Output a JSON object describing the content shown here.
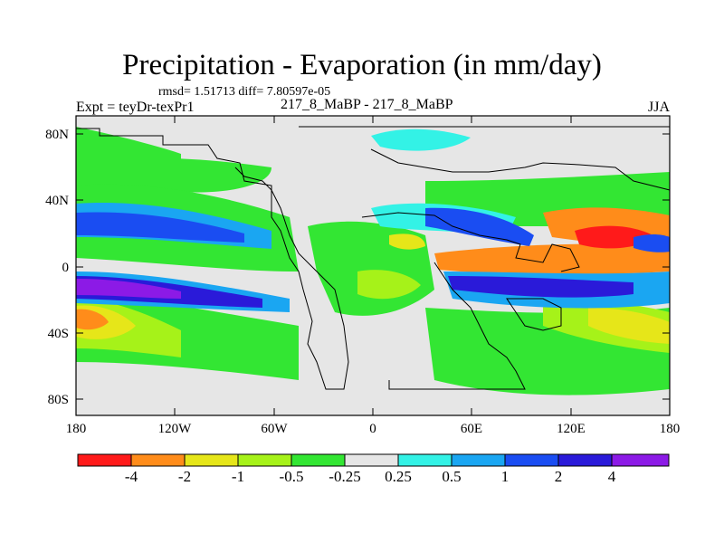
{
  "header": {
    "title": "Precipitation - Evaporation (in mm/day)",
    "stats": "rmsd= 1.51713 diff= 7.80597e-05",
    "experiment": "Expt = teyDr-texPr1",
    "comparison": "217_8_MaBP - 217_8_MaBP",
    "season": "JJA"
  },
  "axes": {
    "lat_ticks": [
      "80N",
      "40N",
      "0",
      "40S",
      "80S"
    ],
    "lon_ticks": [
      "180",
      "120W",
      "60W",
      "0",
      "60E",
      "120E",
      "180"
    ]
  },
  "colorbar": {
    "labels": [
      "-4",
      "-2",
      "-1",
      "-0.5",
      "-0.25",
      "0.25",
      "0.5",
      "1",
      "2",
      "4"
    ],
    "colors": [
      "#ff1a1a",
      "#ff8c1a",
      "#e6e619",
      "#a6f219",
      "#33e633",
      "#e6e6e6",
      "#33f2e6",
      "#1aa6f2",
      "#1a4df2",
      "#2a1ad9",
      "#8c1ae6"
    ]
  },
  "map_colors": {
    "neutral": "#e6e6e6",
    "wet_light": "#33f2e6",
    "wet_1": "#1aa6f2",
    "wet_2": "#1a4df2",
    "wet_3": "#2a1ad9",
    "wet_4": "#8c1ae6",
    "dry_light": "#33e633",
    "dry_1": "#a6f219",
    "dry_2": "#e6e619",
    "dry_3": "#ff8c1a",
    "dry_4": "#ff1a1a"
  }
}
